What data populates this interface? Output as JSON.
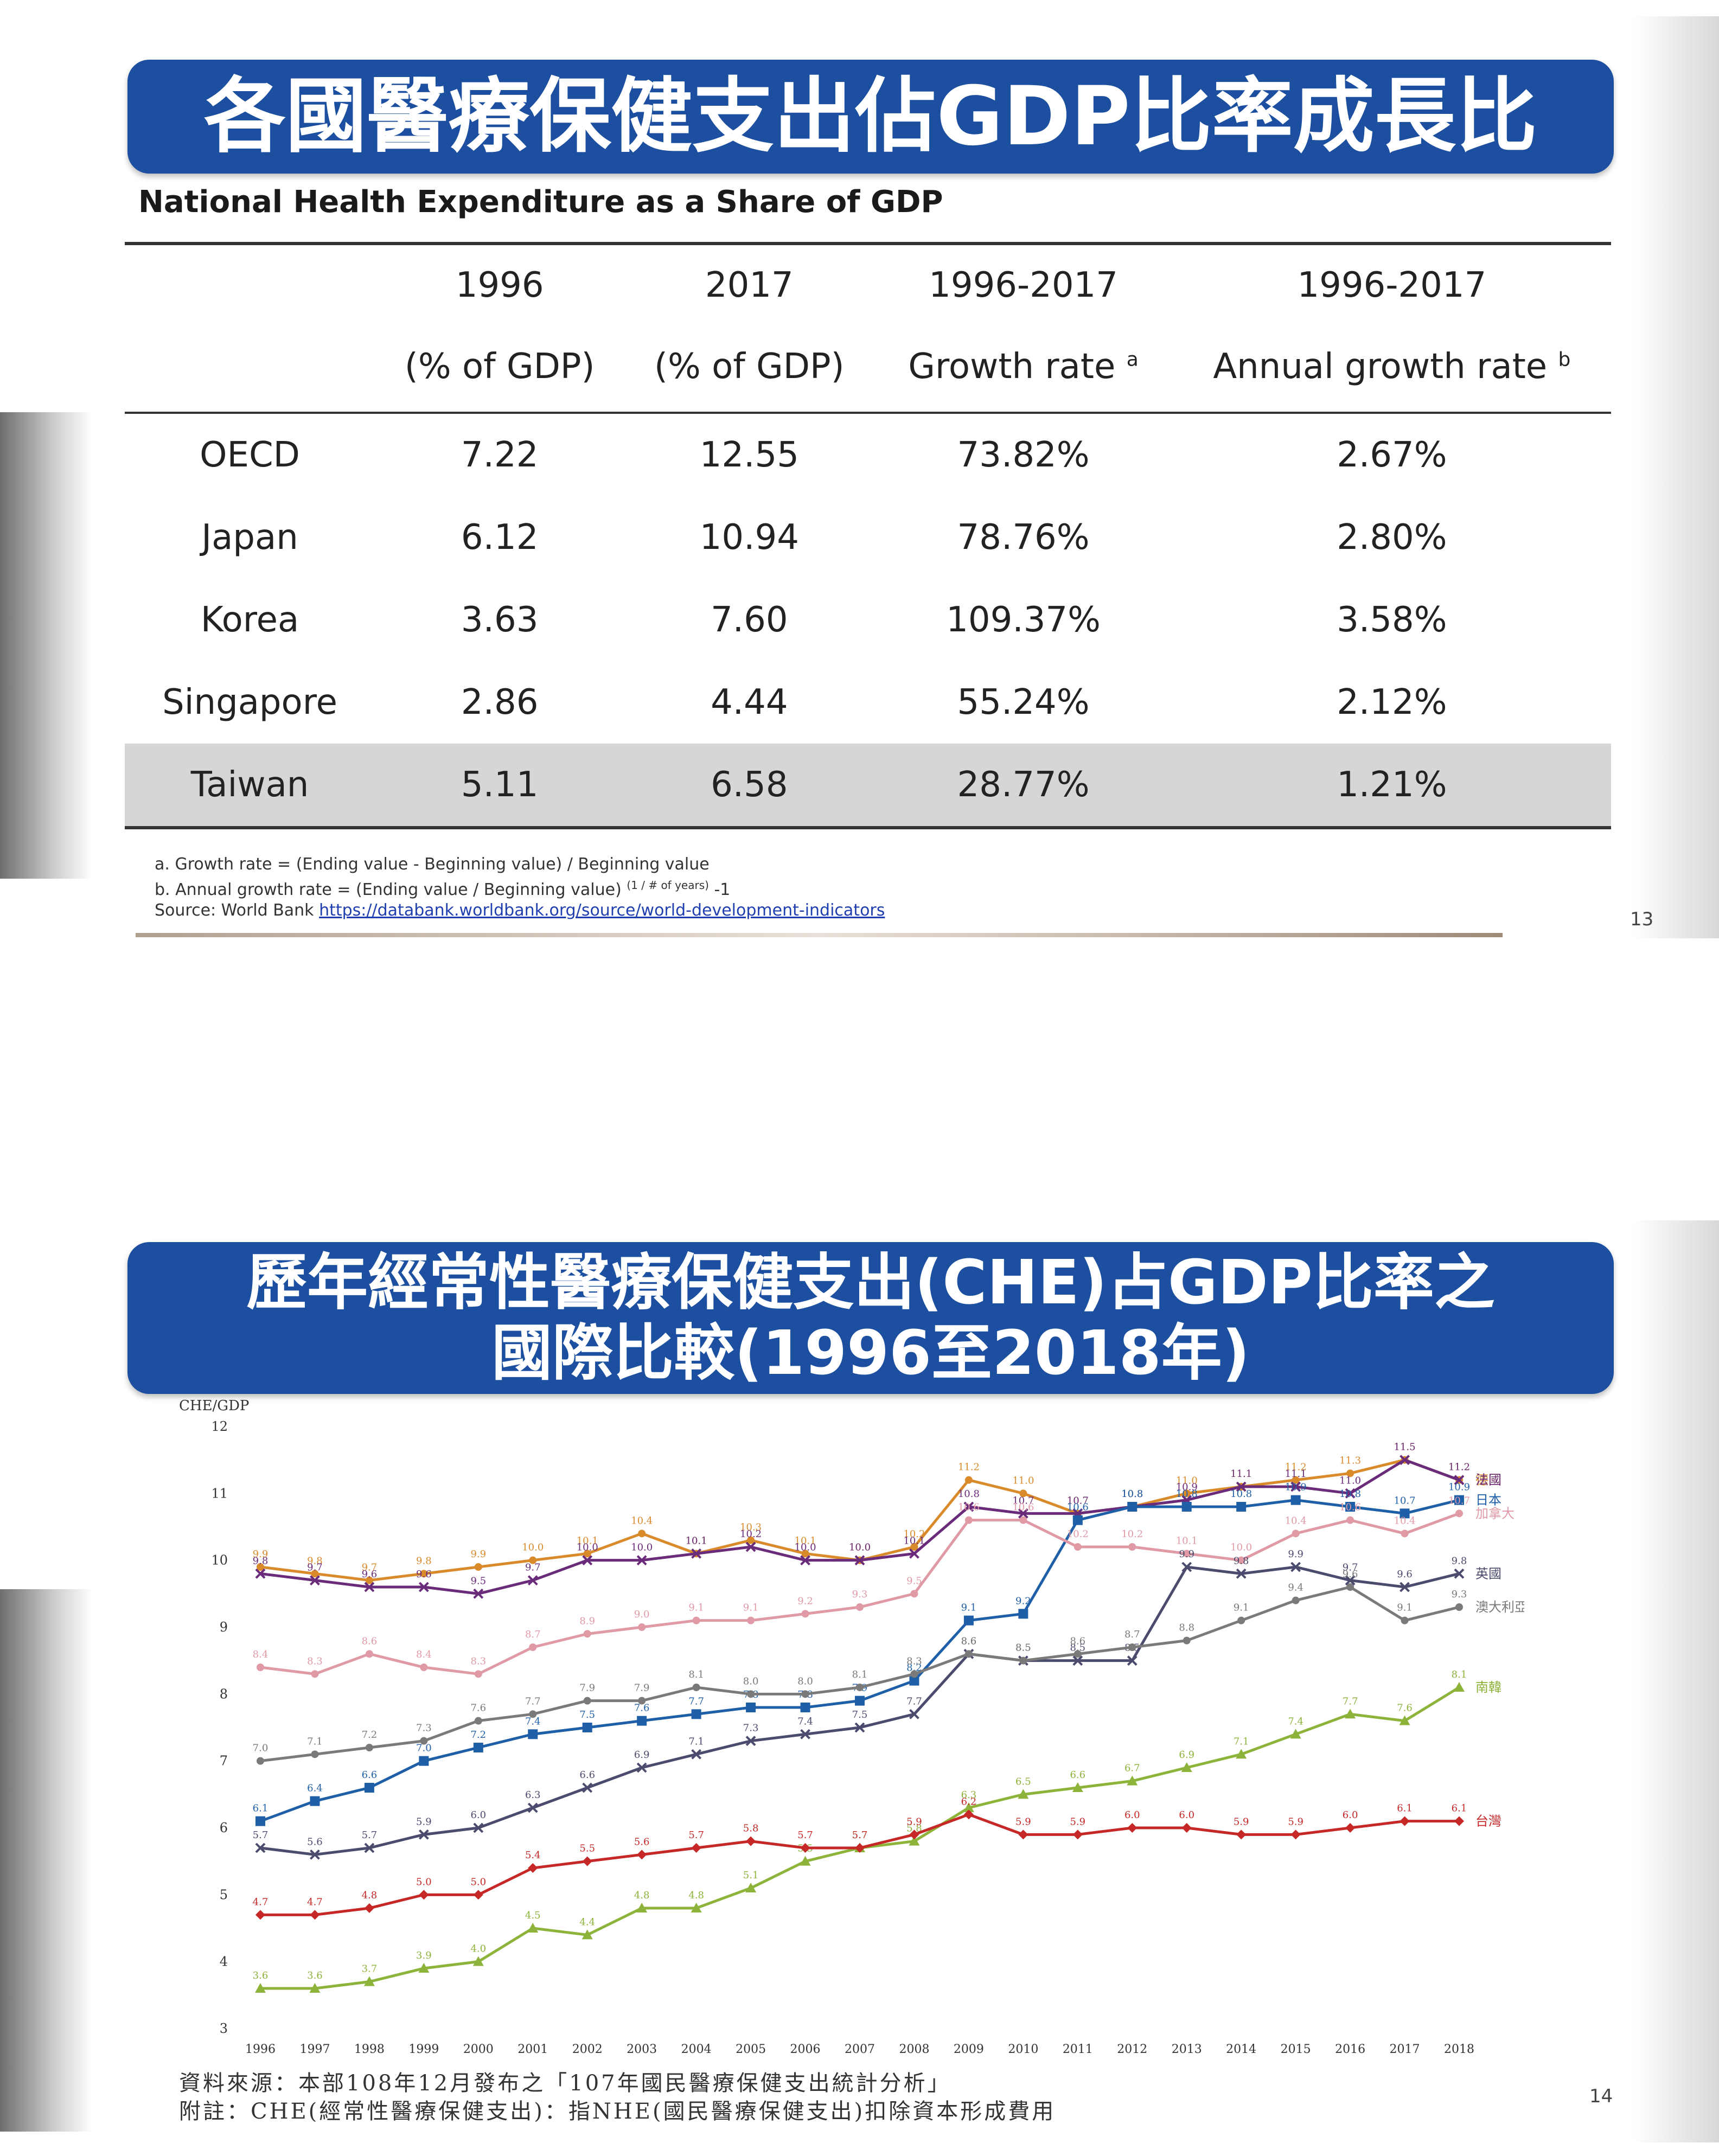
{
  "slide1": {
    "title": "各國醫療保健支出佔GDP比率成長比",
    "subtitle": "National Health Expenditure as a Share of GDP",
    "table": {
      "headers_row1": [
        "",
        "1996",
        "2017",
        "1996-2017",
        "1996-2017"
      ],
      "headers_row2": [
        "",
        "(% of GDP)",
        "(% of GDP)",
        "Growth rate",
        "Annual growth rate"
      ],
      "header_marks": {
        "growth": "a",
        "annual": "b"
      },
      "rows": [
        [
          "OECD",
          "7.22",
          "12.55",
          "73.82%",
          "2.67%"
        ],
        [
          "Japan",
          "6.12",
          "10.94",
          "78.76%",
          "2.80%"
        ],
        [
          "Korea",
          "3.63",
          "7.60",
          "109.37%",
          "3.58%"
        ],
        [
          "Singapore",
          "2.86",
          "4.44",
          "55.24%",
          "2.12%"
        ],
        [
          "Taiwan",
          "5.11",
          "6.58",
          "28.77%",
          "1.21%"
        ]
      ]
    },
    "notes": {
      "a": "a. Growth rate = (Ending value - Beginning value) / Beginning value",
      "b": "b. Annual growth rate = (Ending value / Beginning value)",
      "b_exp": "(1 / # of years)",
      "b_tail": "-1",
      "source_label": "Source: World Bank",
      "source_link": "https://databank.worldbank.org/source/world-development-indicators"
    },
    "page_number": "13"
  },
  "slide2": {
    "title_line1": "歷年經常性醫療保健支出(CHE)占GDP比率之",
    "title_line2": "國際比較(1996至2018年)",
    "source_line1": "資料來源：本部108年12月發布之「107年國民醫療保健支出統計分析」",
    "source_line2": "附註：CHE(經常性醫療保健支出)：指NHE(國民醫療保健支出)扣除資本形成費用",
    "page_number": "14"
  },
  "chart_data": {
    "type": "line",
    "ylabel": "CHE/GDP",
    "ylim": [
      3,
      12
    ],
    "yticks": [
      3,
      4,
      5,
      6,
      7,
      8,
      9,
      10,
      11,
      12
    ],
    "x": [
      "1996",
      "1997",
      "1998",
      "1999",
      "2000",
      "2001",
      "2002",
      "2003",
      "2004",
      "2005",
      "2006",
      "2007",
      "2008",
      "2009",
      "2010",
      "2011",
      "2012",
      "2013",
      "2014",
      "2015",
      "2016",
      "2017",
      "2018"
    ],
    "series": [
      {
        "name": "德國",
        "color": "#d98b2b",
        "marker": "circle",
        "values": [
          9.9,
          9.8,
          9.7,
          9.8,
          9.9,
          10.0,
          10.1,
          10.4,
          10.1,
          10.3,
          10.1,
          10.0,
          10.2,
          11.2,
          11.0,
          10.7,
          10.8,
          11.0,
          11.1,
          11.2,
          11.3,
          11.5,
          11.2
        ]
      },
      {
        "name": "法國",
        "color": "#6a2c7a",
        "marker": "x",
        "values": [
          9.8,
          9.7,
          9.6,
          9.6,
          9.5,
          9.7,
          10.0,
          10.0,
          10.1,
          10.2,
          10.0,
          10.0,
          10.1,
          10.8,
          10.7,
          10.7,
          10.8,
          10.9,
          11.1,
          11.1,
          11.0,
          11.5,
          11.2
        ]
      },
      {
        "name": "日本",
        "color": "#1f5fa8",
        "marker": "square",
        "values": [
          6.1,
          6.4,
          6.6,
          7.0,
          7.2,
          7.4,
          7.5,
          7.6,
          7.7,
          7.8,
          7.8,
          7.9,
          8.2,
          9.1,
          9.2,
          10.6,
          10.8,
          10.8,
          10.8,
          10.9,
          10.8,
          10.7,
          10.9
        ]
      },
      {
        "name": "加拿大",
        "color": "#e09aa6",
        "marker": "circle",
        "values": [
          8.4,
          8.3,
          8.6,
          8.4,
          8.3,
          8.7,
          8.9,
          9.0,
          9.1,
          9.1,
          9.2,
          9.3,
          9.5,
          10.6,
          10.6,
          10.2,
          10.2,
          10.1,
          10.0,
          10.4,
          10.6,
          10.4,
          10.7
        ]
      },
      {
        "name": "英國",
        "color": "#4b4b6e",
        "marker": "x",
        "values": [
          5.7,
          5.6,
          5.7,
          5.9,
          6.0,
          6.3,
          6.6,
          6.9,
          7.1,
          7.3,
          7.4,
          7.5,
          7.7,
          8.6,
          8.5,
          8.5,
          8.5,
          9.9,
          9.8,
          9.9,
          9.7,
          9.6,
          9.8
        ]
      },
      {
        "name": "澳大利亞",
        "color": "#7a7a7a",
        "marker": "circle",
        "values": [
          7.0,
          7.1,
          7.2,
          7.3,
          7.6,
          7.7,
          7.9,
          7.9,
          8.1,
          8.0,
          8.0,
          8.1,
          8.3,
          8.6,
          8.5,
          8.6,
          8.7,
          8.8,
          9.1,
          9.4,
          9.6,
          9.1,
          9.3
        ]
      },
      {
        "name": "南韓",
        "color": "#8db33a",
        "marker": "triangle",
        "values": [
          3.6,
          3.6,
          3.7,
          3.9,
          4.0,
          4.5,
          4.4,
          4.8,
          4.8,
          5.1,
          5.5,
          5.7,
          5.8,
          6.3,
          6.5,
          6.6,
          6.7,
          6.9,
          7.1,
          7.4,
          7.7,
          7.6,
          8.1
        ]
      },
      {
        "name": "台灣",
        "color": "#c62828",
        "marker": "diamond",
        "values": [
          4.7,
          4.7,
          4.8,
          5.0,
          5.0,
          5.4,
          5.5,
          5.6,
          5.7,
          5.8,
          5.7,
          5.7,
          5.9,
          6.2,
          5.9,
          5.9,
          6.0,
          6.0,
          5.9,
          5.9,
          6.0,
          6.1,
          6.1
        ]
      }
    ]
  }
}
